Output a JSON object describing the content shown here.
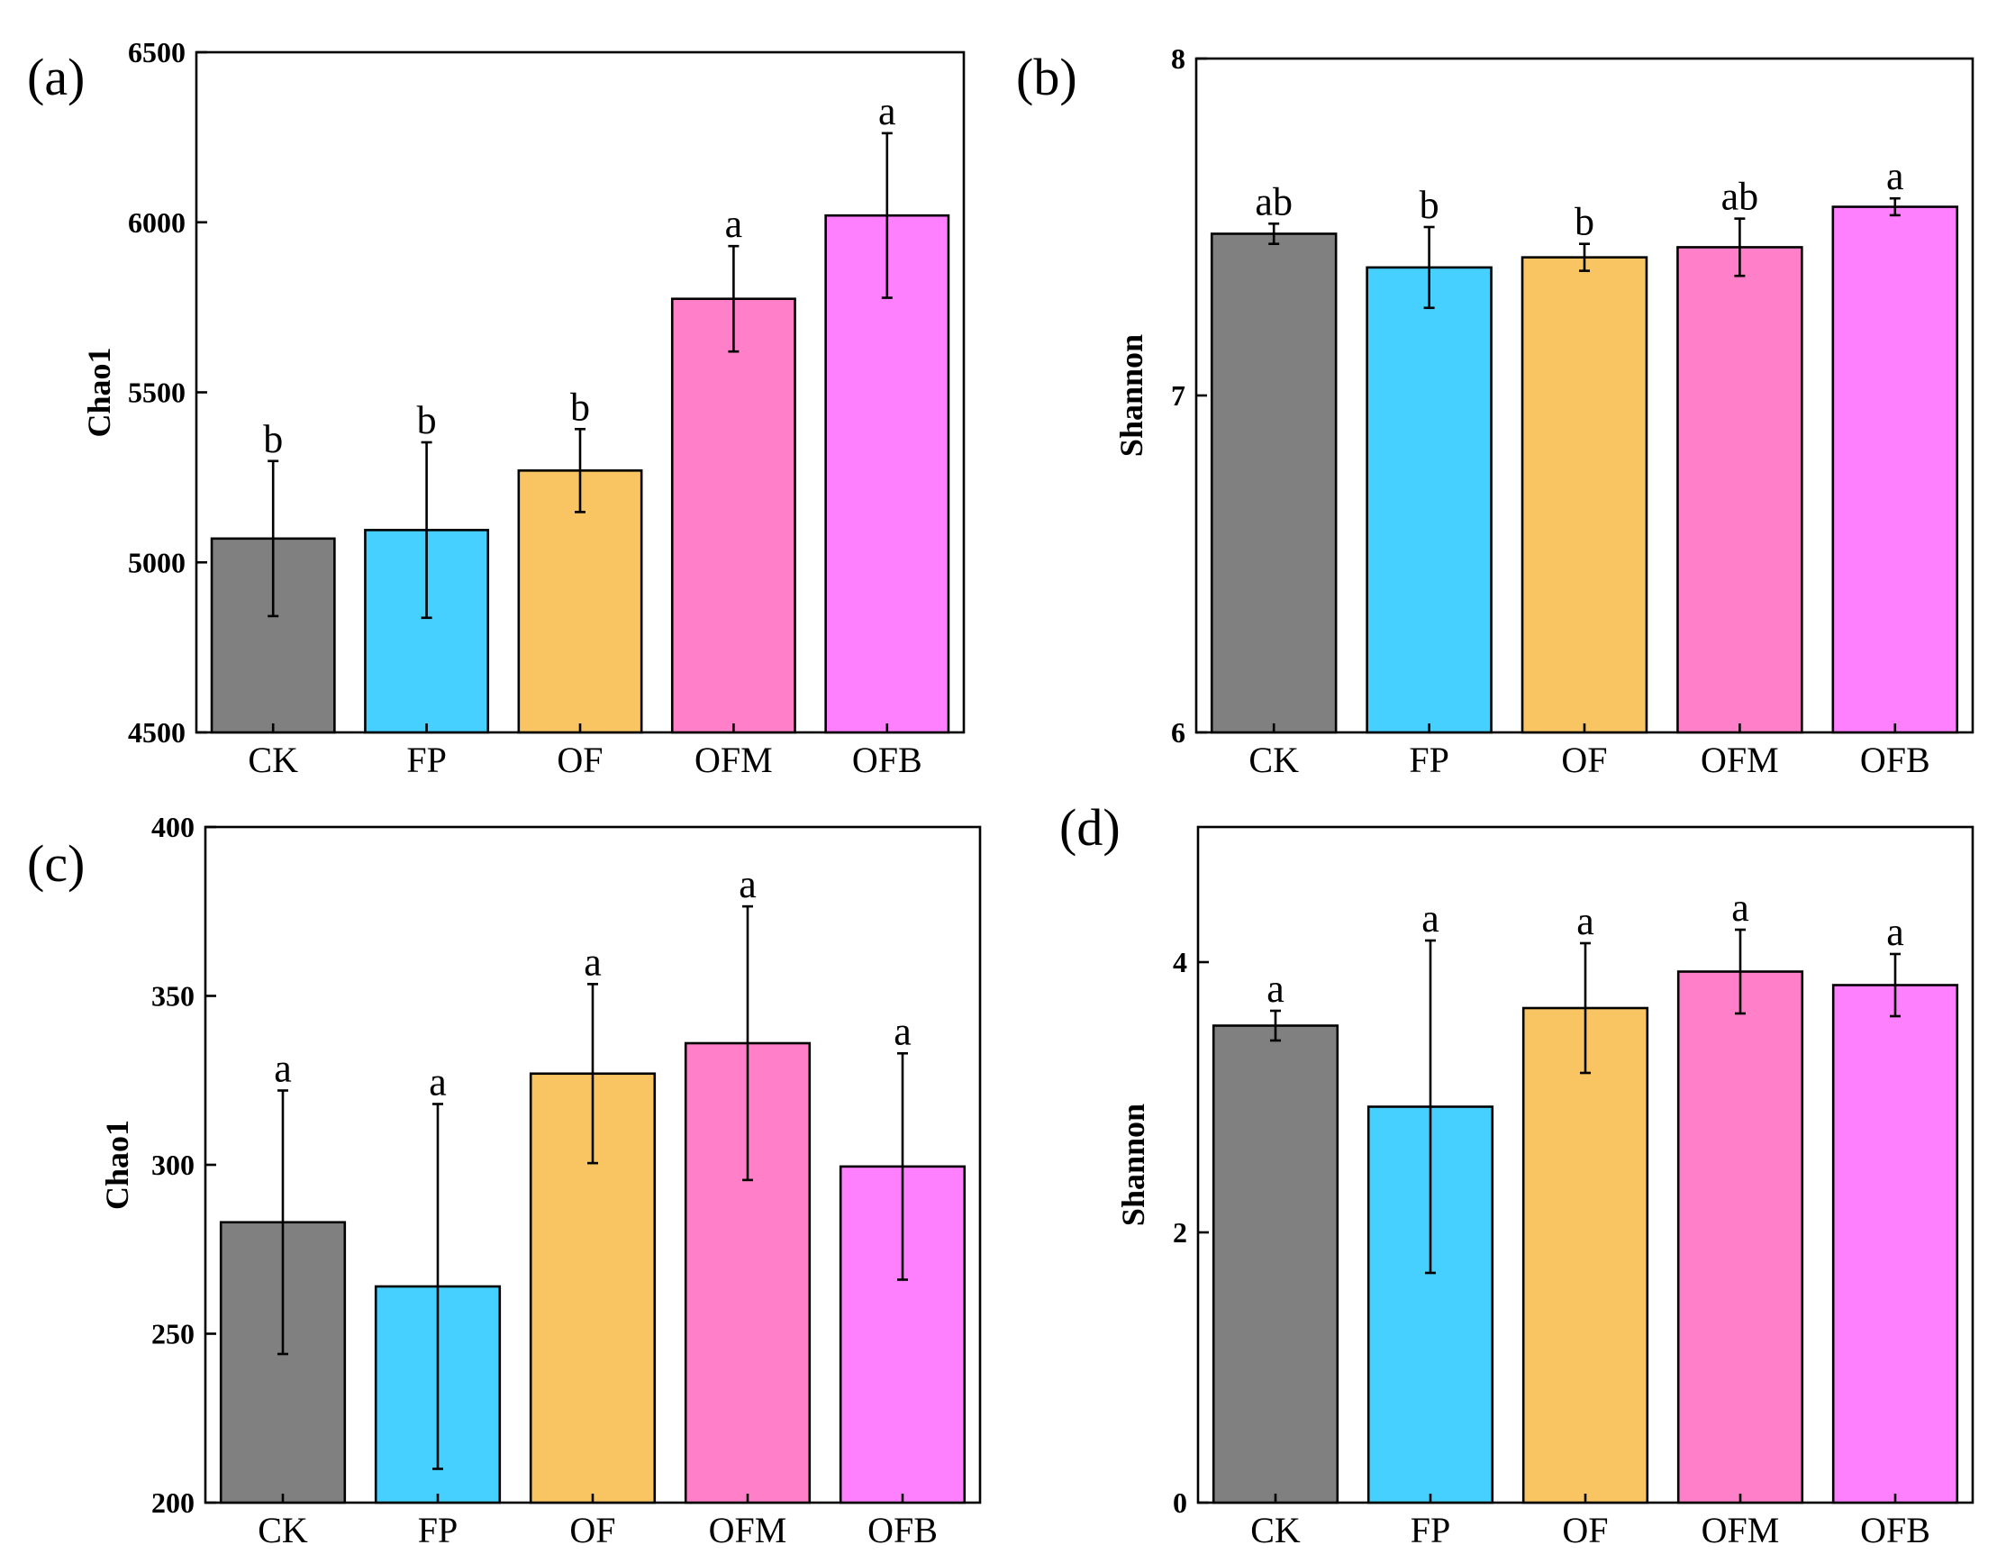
{
  "colors": {
    "CK": "#808080",
    "FP": "#45d0ff",
    "OF": "#f8c562",
    "OFM": "#ff80c8",
    "OFB": "#ff80ff"
  },
  "chart_data": [
    {
      "type": "bar",
      "panel_label": "(a)",
      "ylabel": "Chao1",
      "ylim": [
        4500,
        6500
      ],
      "yticks": [
        4500,
        5000,
        5500,
        6000,
        6500
      ],
      "categories": [
        "CK",
        "FP",
        "OF",
        "OFM",
        "OFB"
      ],
      "values": [
        5070,
        5095,
        5270,
        5775,
        6020
      ],
      "errors": [
        228,
        258,
        122,
        155,
        242
      ],
      "significance": [
        "b",
        "b",
        "b",
        "a",
        "a"
      ]
    },
    {
      "type": "bar",
      "panel_label": "(b)",
      "ylabel": "Shannon",
      "ylim": [
        6,
        8
      ],
      "yticks": [
        6,
        7,
        8
      ],
      "categories": [
        "CK",
        "FP",
        "OF",
        "OFM",
        "OFB"
      ],
      "values": [
        7.48,
        7.38,
        7.41,
        7.44,
        7.56
      ],
      "errors": [
        0.03,
        0.12,
        0.04,
        0.085,
        0.025
      ],
      "significance": [
        "ab",
        "b",
        "b",
        "ab",
        "a"
      ]
    },
    {
      "type": "bar",
      "panel_label": "(c)",
      "ylabel": "Chao1",
      "ylim": [
        200,
        400
      ],
      "yticks": [
        200,
        250,
        300,
        350,
        400
      ],
      "categories": [
        "CK",
        "FP",
        "OF",
        "OFM",
        "OFB"
      ],
      "values": [
        283,
        264,
        327,
        336,
        299.5
      ],
      "errors": [
        39,
        54,
        26.5,
        40.5,
        33.5
      ],
      "significance": [
        "a",
        "a",
        "a",
        "a",
        "a"
      ]
    },
    {
      "type": "bar",
      "panel_label": "(d)",
      "ylabel": "Shannon",
      "ylim": [
        0,
        5
      ],
      "yticks": [
        0,
        2,
        4
      ],
      "categories": [
        "CK",
        "FP",
        "OF",
        "OFM",
        "OFB"
      ],
      "values": [
        3.53,
        2.93,
        3.66,
        3.93,
        3.83
      ],
      "errors": [
        0.11,
        1.23,
        0.48,
        0.31,
        0.23
      ],
      "significance": [
        "a",
        "a",
        "a",
        "a",
        "a"
      ]
    }
  ]
}
